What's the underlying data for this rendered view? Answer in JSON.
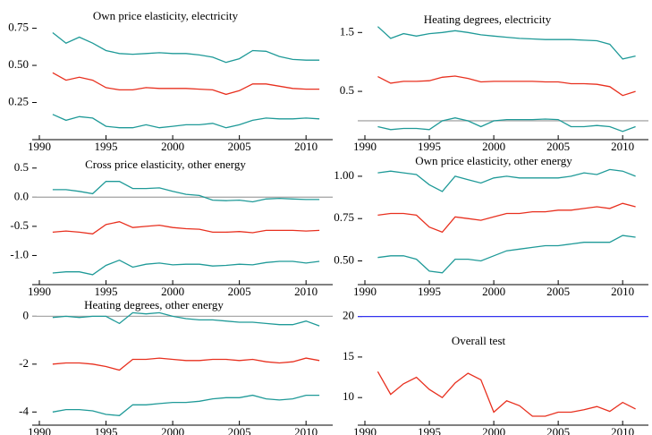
{
  "chart_data": [
    {
      "type": "line",
      "title": "Own price elasticity, electricity",
      "x": [
        1991,
        1992,
        1993,
        1994,
        1995,
        1996,
        1997,
        1998,
        1999,
        2000,
        2001,
        2002,
        2003,
        2004,
        2005,
        2006,
        2007,
        2008,
        2009,
        2010,
        2011
      ],
      "xlim": [
        1990,
        2012
      ],
      "xticks": [
        1990,
        1995,
        2000,
        2005,
        2010
      ],
      "ylim": [
        0,
        0.88
      ],
      "yticks": [
        0.25,
        {
          "value": 0.5,
          "label": "0.50"
        },
        0.75
      ],
      "series": [
        {
          "color": "#1f9a98",
          "values": [
            0.72,
            0.65,
            0.69,
            0.65,
            0.6,
            0.58,
            0.575,
            0.58,
            0.585,
            0.58,
            0.58,
            0.57,
            0.555,
            0.52,
            0.545,
            0.6,
            0.595,
            0.56,
            0.54,
            0.535,
            0.535
          ]
        },
        {
          "color": "#e8301f",
          "values": [
            0.45,
            0.4,
            0.42,
            0.4,
            0.35,
            0.335,
            0.335,
            0.35,
            0.345,
            0.345,
            0.345,
            0.34,
            0.335,
            0.305,
            0.33,
            0.375,
            0.375,
            0.36,
            0.345,
            0.34,
            0.34
          ]
        },
        {
          "color": "#1f9a98",
          "values": [
            0.17,
            0.13,
            0.155,
            0.145,
            0.09,
            0.08,
            0.08,
            0.1,
            0.08,
            0.09,
            0.1,
            0.1,
            0.11,
            0.08,
            0.1,
            0.13,
            0.145,
            0.14,
            0.14,
            0.145,
            0.14
          ]
        }
      ]
    },
    {
      "type": "line",
      "title": "Heating degrees, electricity",
      "x": [
        1991,
        1992,
        1993,
        1994,
        1995,
        1996,
        1997,
        1998,
        1999,
        2000,
        2001,
        2002,
        2003,
        2004,
        2005,
        2006,
        2007,
        2008,
        2009,
        2010,
        2011
      ],
      "xlim": [
        1990,
        2012
      ],
      "xticks": [
        1990,
        1995,
        2000,
        2005,
        2010
      ],
      "ylim": [
        -0.32,
        1.9
      ],
      "yticks": [
        0.5,
        1.5
      ],
      "reference_line": {
        "value": 0,
        "color": "#aaaaaa"
      },
      "series": [
        {
          "color": "#1f9a98",
          "values": [
            1.6,
            1.4,
            1.48,
            1.44,
            1.48,
            1.5,
            1.53,
            1.5,
            1.46,
            1.44,
            1.42,
            1.4,
            1.39,
            1.38,
            1.38,
            1.38,
            1.37,
            1.36,
            1.3,
            1.05,
            1.1
          ]
        },
        {
          "color": "#e8301f",
          "values": [
            0.75,
            0.64,
            0.67,
            0.67,
            0.68,
            0.74,
            0.76,
            0.72,
            0.66,
            0.67,
            0.67,
            0.67,
            0.67,
            0.66,
            0.66,
            0.63,
            0.63,
            0.62,
            0.58,
            0.43,
            0.5
          ]
        },
        {
          "color": "#1f9a98",
          "values": [
            -0.1,
            -0.15,
            -0.13,
            -0.13,
            -0.15,
            0.0,
            0.05,
            0.0,
            -0.1,
            0.0,
            0.02,
            0.02,
            0.02,
            0.03,
            0.02,
            -0.1,
            -0.1,
            -0.08,
            -0.1,
            -0.18,
            -0.1
          ]
        }
      ]
    },
    {
      "type": "line",
      "title": "Cross price elasticity, other energy",
      "x": [
        1991,
        1992,
        1993,
        1994,
        1995,
        1996,
        1997,
        1998,
        1999,
        2000,
        2001,
        2002,
        2003,
        2004,
        2005,
        2006,
        2007,
        2008,
        2009,
        2010,
        2011
      ],
      "xlim": [
        1990,
        2012
      ],
      "xticks": [
        1990,
        1995,
        2000,
        2005,
        2010
      ],
      "ylim": [
        -1.5,
        0.65
      ],
      "yticks": [
        {
          "value": -1,
          "label": "-1.0"
        },
        -0.5,
        {
          "value": 0,
          "label": "0.0"
        },
        0.5
      ],
      "reference_line": {
        "value": 0,
        "color": "#aaaaaa"
      },
      "series": [
        {
          "color": "#1f9a98",
          "values": [
            0.13,
            0.13,
            0.1,
            0.06,
            0.27,
            0.27,
            0.15,
            0.15,
            0.16,
            0.1,
            0.05,
            0.03,
            -0.05,
            -0.06,
            -0.05,
            -0.08,
            -0.03,
            -0.02,
            -0.03,
            -0.04,
            -0.04
          ]
        },
        {
          "color": "#e8301f",
          "values": [
            -0.6,
            -0.58,
            -0.6,
            -0.63,
            -0.47,
            -0.42,
            -0.52,
            -0.5,
            -0.48,
            -0.52,
            -0.54,
            -0.55,
            -0.6,
            -0.6,
            -0.59,
            -0.61,
            -0.57,
            -0.57,
            -0.57,
            -0.58,
            -0.57
          ]
        },
        {
          "color": "#1f9a98",
          "values": [
            -1.3,
            -1.28,
            -1.28,
            -1.33,
            -1.17,
            -1.08,
            -1.2,
            -1.15,
            -1.13,
            -1.16,
            -1.15,
            -1.15,
            -1.18,
            -1.17,
            -1.15,
            -1.16,
            -1.12,
            -1.1,
            -1.1,
            -1.13,
            -1.1
          ]
        }
      ]
    },
    {
      "type": "line",
      "title": "Own price elasticity, other energy",
      "x": [
        1991,
        1992,
        1993,
        1994,
        1995,
        1996,
        1997,
        1998,
        1999,
        2000,
        2001,
        2002,
        2003,
        2004,
        2005,
        2006,
        2007,
        2008,
        2009,
        2010,
        2011
      ],
      "xlim": [
        1990,
        2012
      ],
      "xticks": [
        1990,
        1995,
        2000,
        2005,
        2010
      ],
      "ylim": [
        0.36,
        1.1
      ],
      "yticks": [
        {
          "value": 0.5,
          "label": "0.50"
        },
        0.75,
        {
          "value": 1,
          "label": "1.00"
        }
      ],
      "series": [
        {
          "color": "#1f9a98",
          "values": [
            1.02,
            1.03,
            1.02,
            1.01,
            0.95,
            0.91,
            1.0,
            0.98,
            0.96,
            0.99,
            1.0,
            0.99,
            0.99,
            0.99,
            0.99,
            1.0,
            1.02,
            1.01,
            1.04,
            1.03,
            1.0
          ]
        },
        {
          "color": "#e8301f",
          "values": [
            0.77,
            0.78,
            0.78,
            0.77,
            0.7,
            0.67,
            0.76,
            0.75,
            0.74,
            0.76,
            0.78,
            0.78,
            0.79,
            0.79,
            0.8,
            0.8,
            0.81,
            0.82,
            0.81,
            0.84,
            0.82
          ]
        },
        {
          "color": "#1f9a98",
          "values": [
            0.52,
            0.53,
            0.53,
            0.51,
            0.44,
            0.43,
            0.51,
            0.51,
            0.5,
            0.53,
            0.56,
            0.57,
            0.58,
            0.59,
            0.59,
            0.6,
            0.61,
            0.61,
            0.61,
            0.65,
            0.64
          ]
        }
      ]
    },
    {
      "type": "line",
      "title": "Heating degrees, other energy",
      "x": [
        1991,
        1992,
        1993,
        1994,
        1995,
        1996,
        1997,
        1998,
        1999,
        2000,
        2001,
        2002,
        2003,
        2004,
        2005,
        2006,
        2007,
        2008,
        2009,
        2010,
        2011
      ],
      "xlim": [
        1990,
        2012
      ],
      "xticks": [
        1990,
        1995,
        2000,
        2005,
        2010
      ],
      "ylim": [
        -4.55,
        0.5
      ],
      "yticks": [
        -4,
        -2,
        0
      ],
      "reference_line": {
        "value": 0,
        "color": "#aaaaaa"
      },
      "series": [
        {
          "color": "#1f9a98",
          "values": [
            -0.05,
            0.0,
            -0.05,
            0.0,
            0.0,
            -0.3,
            0.15,
            0.1,
            0.15,
            0.0,
            -0.1,
            -0.15,
            -0.15,
            -0.2,
            -0.25,
            -0.25,
            -0.3,
            -0.35,
            -0.35,
            -0.2,
            -0.4
          ]
        },
        {
          "color": "#e8301f",
          "values": [
            -2.0,
            -1.95,
            -1.95,
            -2.0,
            -2.1,
            -2.25,
            -1.8,
            -1.8,
            -1.75,
            -1.8,
            -1.85,
            -1.85,
            -1.8,
            -1.8,
            -1.85,
            -1.8,
            -1.9,
            -1.95,
            -1.9,
            -1.75,
            -1.85
          ]
        },
        {
          "color": "#1f9a98",
          "values": [
            -4.0,
            -3.9,
            -3.9,
            -3.95,
            -4.1,
            -4.15,
            -3.7,
            -3.7,
            -3.65,
            -3.6,
            -3.6,
            -3.55,
            -3.45,
            -3.4,
            -3.4,
            -3.3,
            -3.45,
            -3.5,
            -3.45,
            -3.3,
            -3.3
          ]
        }
      ]
    },
    {
      "type": "line",
      "title": "Overall test",
      "x": [
        1991,
        1992,
        1993,
        1994,
        1995,
        1996,
        1997,
        1998,
        1999,
        2000,
        2001,
        2002,
        2003,
        2004,
        2005,
        2006,
        2007,
        2008,
        2009,
        2010,
        2011
      ],
      "xlim": [
        1990,
        2012
      ],
      "xticks": [
        1990,
        1995,
        2000,
        2005,
        2010
      ],
      "ylim": [
        6.6,
        21.5
      ],
      "yticks": [
        10,
        15,
        20
      ],
      "reference_line": {
        "value": 20,
        "color": "#3333ee"
      },
      "series": [
        {
          "color": "#e8301f",
          "values": [
            13.2,
            10.4,
            11.7,
            12.5,
            11.0,
            10.0,
            11.8,
            13.0,
            12.2,
            8.2,
            9.6,
            9.0,
            7.7,
            7.7,
            8.2,
            8.2,
            8.5,
            8.9,
            8.3,
            9.4,
            8.6
          ]
        }
      ]
    }
  ]
}
